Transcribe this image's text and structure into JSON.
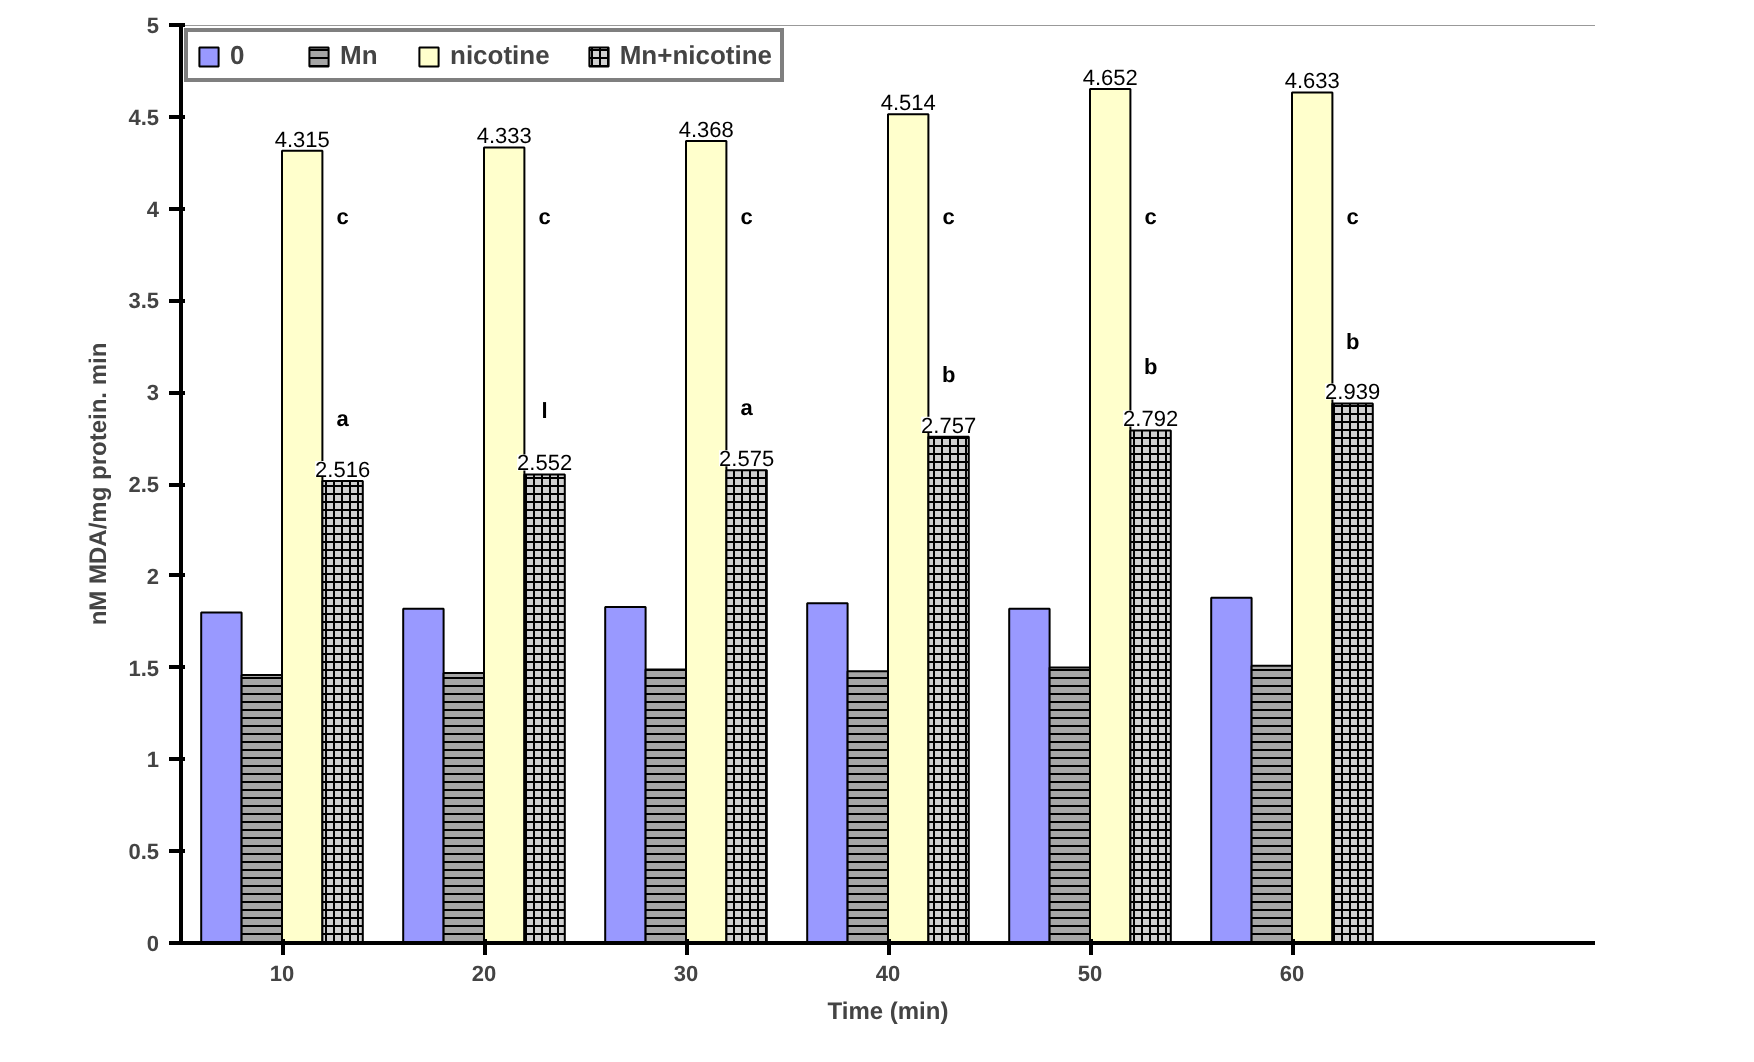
{
  "chart_data": {
    "type": "bar",
    "xlabel": "Time (min)",
    "ylabel": "nM MDA/mg protein. min",
    "categories": [
      "10",
      "20",
      "30",
      "40",
      "50",
      "60",
      null
    ],
    "ylim": [
      0,
      5
    ],
    "yticks": [
      0,
      0.5,
      1,
      1.5,
      2,
      2.5,
      3,
      3.5,
      4,
      4.5,
      5
    ],
    "grid": false,
    "legend": "top left",
    "series": [
      {
        "name": "0",
        "color": "#9999ff",
        "values": [
          1.8,
          1.82,
          1.83,
          1.85,
          1.82,
          1.88,
          null
        ]
      },
      {
        "name": "Mn",
        "color": "#a6a6a6",
        "values": [
          1.46,
          1.47,
          1.49,
          1.48,
          1.5,
          1.51,
          null
        ]
      },
      {
        "name": "nicotine",
        "color": "#ffffcc",
        "values": [
          4.315,
          4.333,
          4.368,
          4.514,
          4.652,
          4.633,
          null
        ],
        "value_labels": [
          "4.315",
          "4.333",
          "4.368",
          "4.514",
          "4.652",
          "4.633",
          null
        ]
      },
      {
        "name": "Mn+nicotine",
        "color": "#d0d0d0",
        "values": [
          2.516,
          2.552,
          2.575,
          2.757,
          2.792,
          2.939,
          null
        ],
        "value_labels": [
          "2.516",
          "2.552",
          "2.575",
          "2.757",
          "2.792",
          "2.939",
          null
        ]
      }
    ],
    "annotations": [
      {
        "text": "c",
        "x": "10",
        "y": 3.95
      },
      {
        "text": "c",
        "x": "20",
        "y": 3.95
      },
      {
        "text": "c",
        "x": "30",
        "y": 3.95
      },
      {
        "text": "c",
        "x": "40",
        "y": 3.95
      },
      {
        "text": "c",
        "x": "50",
        "y": 3.95
      },
      {
        "text": "c",
        "x": "60",
        "y": 3.95
      },
      {
        "text": "a",
        "x": "10",
        "y": 2.85
      },
      {
        "text": "l",
        "x": "20",
        "y": 2.89
      },
      {
        "text": "a",
        "x": "30",
        "y": 2.91
      },
      {
        "text": "b",
        "x": "40",
        "y": 3.09
      },
      {
        "text": "b",
        "x": "50",
        "y": 3.13
      },
      {
        "text": "b",
        "x": "60",
        "y": 3.27
      }
    ]
  }
}
